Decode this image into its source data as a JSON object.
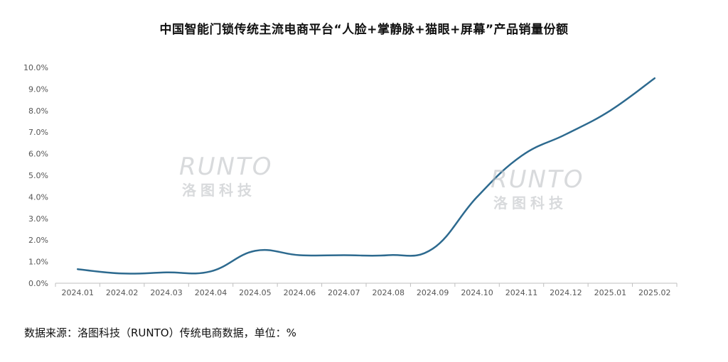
{
  "chart_data": {
    "type": "line",
    "title": "中国智能门锁传统主流电商平台“人脸+掌静脉+猫眼+屏幕”产品销量份额",
    "categories": [
      "2024.01",
      "2024.02",
      "2024.03",
      "2024.04",
      "2024.05",
      "2024.06",
      "2024.07",
      "2024.08",
      "2024.09",
      "2024.10",
      "2024.11",
      "2024.12",
      "2025.01",
      "2025.02"
    ],
    "series": [
      {
        "values": [
          0.65,
          0.45,
          0.5,
          0.55,
          1.5,
          1.3,
          1.3,
          1.3,
          1.6,
          4.0,
          5.9,
          6.9,
          8.0,
          9.5
        ]
      }
    ],
    "y_ticks": [
      "0.0%",
      "1.0%",
      "2.0%",
      "3.0%",
      "4.0%",
      "5.0%",
      "6.0%",
      "7.0%",
      "8.0%",
      "9.0%",
      "10.0%"
    ],
    "ylim": [
      0,
      10
    ],
    "line_color": "#2d6a8f",
    "grid": false
  },
  "source": "数据来源：洛图科技（RUNTO）传统电商数据，单位：%",
  "watermark": {
    "brand": "RUNTO",
    "cn": "洛图科技"
  }
}
